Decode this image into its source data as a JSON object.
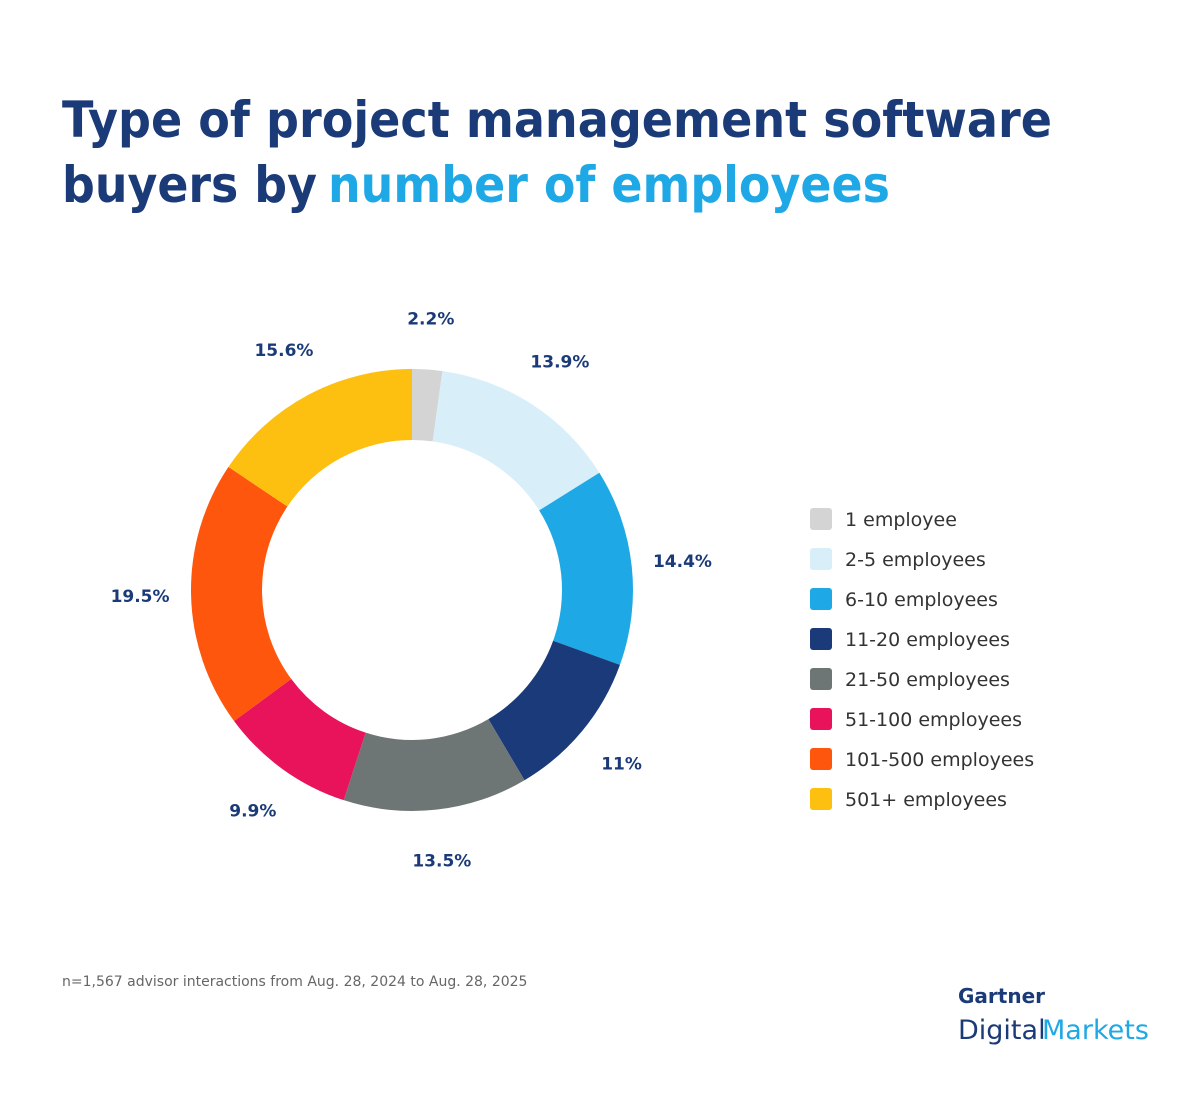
{
  "chart_data": {
    "type": "donut",
    "title": "Type of project management software buyers by",
    "title_highlight": "number of employees",
    "categories": [
      "1 employee",
      "2-5 employees",
      "6-10 employees",
      "11-20 employees",
      "21-50 employees",
      "51-100 employees",
      "101-500 employees",
      "501+ employees"
    ],
    "values": [
      2.2,
      13.9,
      14.4,
      11,
      13.5,
      9.9,
      19.5,
      15.6
    ],
    "value_labels": [
      "2.2%",
      "13.9%",
      "14.4%",
      "11%",
      "13.5%",
      "9.9%",
      "19.5%",
      "15.6%"
    ],
    "colors": [
      "#d4d4d4",
      "#d8eef8",
      "#1ea8e6",
      "#1a3a7a",
      "#6e7675",
      "#e8135a",
      "#ff560d",
      "#fdc010"
    ],
    "legend": "right"
  },
  "footnote": "n=1,567 advisor interactions from Aug. 28, 2024 to Aug. 28, 2025",
  "logo": {
    "name": "Gartner",
    "line1": "Digital",
    "line2": "Markets"
  }
}
